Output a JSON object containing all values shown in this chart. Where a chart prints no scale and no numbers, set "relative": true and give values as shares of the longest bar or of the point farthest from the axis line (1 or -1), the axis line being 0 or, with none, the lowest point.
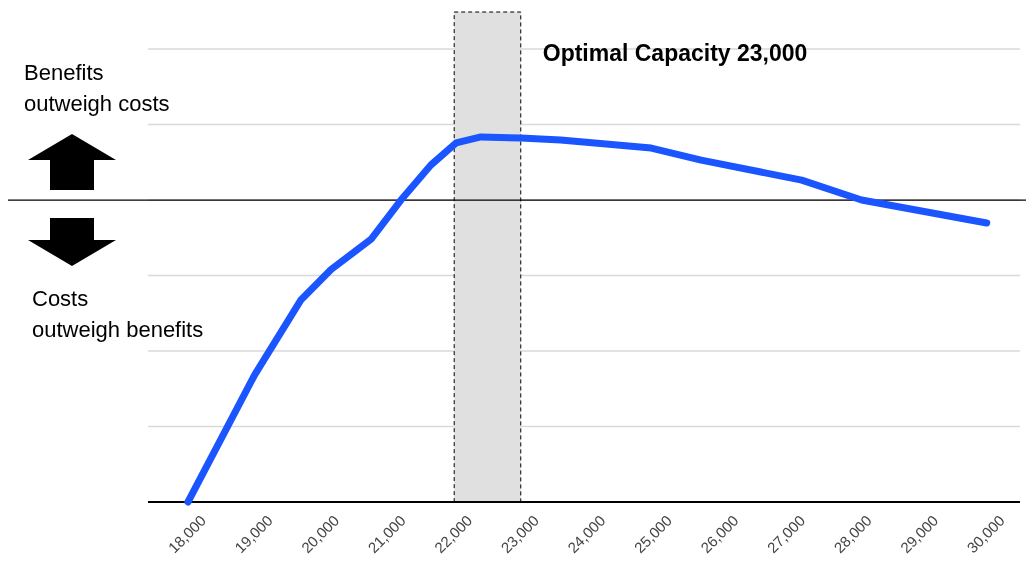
{
  "chart_data": {
    "type": "line",
    "relative": true,
    "x": [
      18000,
      18500,
      19000,
      19700,
      20150,
      20750,
      21200,
      21650,
      22030,
      22400,
      23000,
      23600,
      24960,
      25710,
      27220,
      28120,
      30000
    ],
    "series": [
      {
        "color": "#1a55ff",
        "values": [
          -1,
          -0.79,
          -0.58,
          -0.33,
          -0.23,
          -0.13,
          0,
          0.116,
          0.189,
          0.209,
          0.205,
          0.199,
          0.172,
          0.132,
          0.066,
          0,
          -0.076
        ]
      }
    ],
    "xlim": [
      17400,
      30500
    ],
    "xticks": [
      {
        "value": 18000,
        "label": "18,000"
      },
      {
        "value": 19000,
        "label": "19,000"
      },
      {
        "value": 20000,
        "label": "20,000"
      },
      {
        "value": 21000,
        "label": "21,000"
      },
      {
        "value": 22000,
        "label": "22,000"
      },
      {
        "value": 23000,
        "label": "23,000"
      },
      {
        "value": 24000,
        "label": "24,000"
      },
      {
        "value": 25000,
        "label": "25,000"
      },
      {
        "value": 26000,
        "label": "26,000"
      },
      {
        "value": 27000,
        "label": "27,000"
      },
      {
        "value": 28000,
        "label": "28,000"
      },
      {
        "value": 29000,
        "label": "29,000"
      },
      {
        "value": 30000,
        "label": "30,000"
      }
    ],
    "grid": "y",
    "marker": "none",
    "line_style": "solid",
    "ref_lines": [
      {
        "axis": "y",
        "value": 0,
        "color": "#000000"
      }
    ],
    "bands": [
      {
        "axis": "x",
        "from": 22000,
        "to": 23000,
        "label": "Optimal Capacity 23,000",
        "color": "#e0e0e0"
      }
    ],
    "annotations": [
      "Benefits outweigh costs",
      "Costs outweigh benefits"
    ]
  }
}
